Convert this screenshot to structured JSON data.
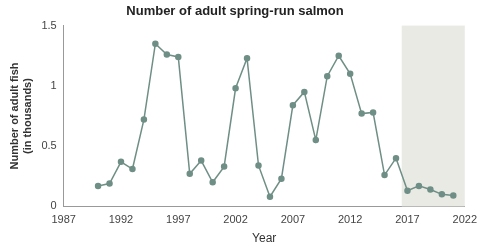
{
  "chart_data": {
    "type": "line",
    "title": "Number of adult spring-run salmon",
    "x_label": "Year",
    "y_label": [
      "Number of adult fish",
      "(in thousands)"
    ],
    "x": [
      1990,
      1991,
      1992,
      1993,
      1994,
      1995,
      1996,
      1997,
      1998,
      1999,
      2000,
      2001,
      2002,
      2003,
      2004,
      2005,
      2006,
      2007,
      2008,
      2009,
      2010,
      2011,
      2012,
      2013,
      2014,
      2015,
      2016,
      2017,
      2018,
      2019,
      2020,
      2021
    ],
    "values": [
      0.17,
      0.19,
      0.37,
      0.31,
      0.72,
      1.35,
      1.26,
      1.24,
      0.27,
      0.38,
      0.2,
      0.33,
      0.98,
      1.23,
      0.34,
      0.08,
      0.23,
      0.84,
      0.95,
      0.55,
      1.08,
      1.25,
      1.1,
      0.77,
      0.78,
      0.26,
      0.4,
      0.13,
      0.17,
      0.14,
      0.1,
      0.09
    ],
    "color": "#6f8f86",
    "marker": "circle",
    "shaded_x": [
      2016.5,
      2022
    ],
    "xlim": [
      1987,
      2022
    ],
    "xticks": [
      1987,
      1992,
      1997,
      2002,
      2007,
      2012,
      2017,
      2022
    ],
    "ylim": [
      0,
      1.5
    ],
    "yticks": [
      0,
      0.5,
      1,
      1.5
    ],
    "grid": false
  }
}
